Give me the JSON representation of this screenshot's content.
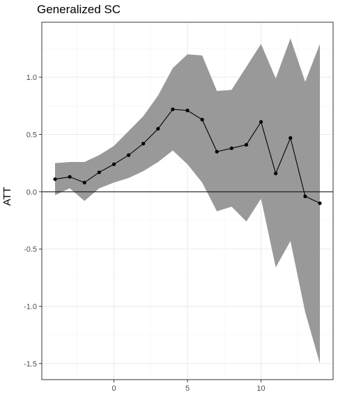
{
  "chart_data": {
    "type": "line",
    "title": "Generalized SC",
    "xlabel": "",
    "ylabel": "ATT",
    "xlim": [
      -4.9,
      14.9
    ],
    "ylim": [
      -1.64,
      1.48
    ],
    "x_ticks": [
      0,
      5,
      10
    ],
    "y_ticks": [
      -1.5,
      -1.0,
      -0.5,
      0.0,
      0.5,
      1.0
    ],
    "y_tick_labels": [
      "-1.5",
      "-1.0",
      "-0.5",
      "0.0",
      "0.5",
      "1.0"
    ],
    "x_tick_labels": [
      "0",
      "5",
      "10"
    ],
    "x": [
      -4,
      -3,
      -2,
      -1,
      0,
      1,
      2,
      3,
      4,
      5,
      6,
      7,
      8,
      9,
      10,
      11,
      12,
      13,
      14
    ],
    "series": [
      {
        "values": [
          0.11,
          0.13,
          0.08,
          0.17,
          0.24,
          0.32,
          0.42,
          0.55,
          0.72,
          0.71,
          0.63,
          0.35,
          0.38,
          0.41,
          0.61,
          0.16,
          0.47,
          -0.04,
          -0.1
        ]
      }
    ],
    "ci_lower": [
      -0.03,
      0.03,
      -0.08,
      0.03,
      0.08,
      0.12,
      0.18,
      0.26,
      0.36,
      0.24,
      0.08,
      -0.17,
      -0.13,
      -0.26,
      -0.06,
      -0.66,
      -0.43,
      -1.05,
      -1.5
    ],
    "ci_upper": [
      0.25,
      0.26,
      0.26,
      0.32,
      0.4,
      0.53,
      0.66,
      0.84,
      1.08,
      1.2,
      1.19,
      0.88,
      0.89,
      1.09,
      1.29,
      0.99,
      1.34,
      0.96,
      1.29
    ],
    "reference_line": 0,
    "grid": true,
    "colors": {
      "band": "#999999",
      "line": "#000000",
      "grid_major": "#ebebeb",
      "grid_minor": "#f4f4f4",
      "border": "#333333"
    }
  }
}
